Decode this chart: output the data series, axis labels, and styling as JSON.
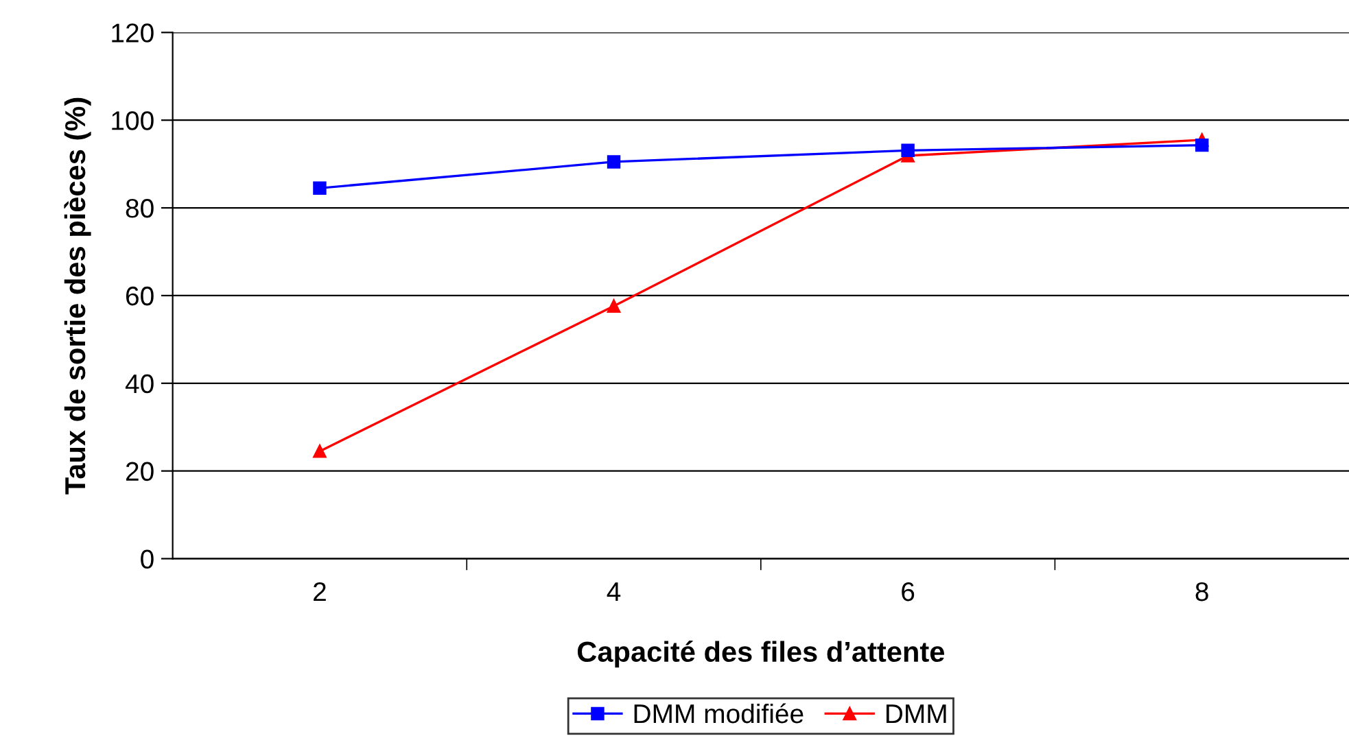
{
  "chart_data": {
    "type": "line",
    "xlabel": "Capacité des files d’attente",
    "ylabel": "Taux de sortie des pièces (%)",
    "categories": [
      "2",
      "4",
      "6",
      "8"
    ],
    "series": [
      {
        "name": "DMM modifiée",
        "color": "#0000ff",
        "marker": "square",
        "values": [
          84.5,
          90.5,
          93.1,
          94.3
        ]
      },
      {
        "name": "DMM",
        "color": "#ff0000",
        "marker": "triangle",
        "values": [
          24.5,
          57.6,
          91.9,
          95.5
        ]
      }
    ],
    "ylim": [
      0,
      120
    ],
    "yticks": [
      0,
      20,
      40,
      60,
      80,
      100,
      120
    ],
    "grid": "y",
    "legend": "bottom",
    "line_style": "solid"
  }
}
